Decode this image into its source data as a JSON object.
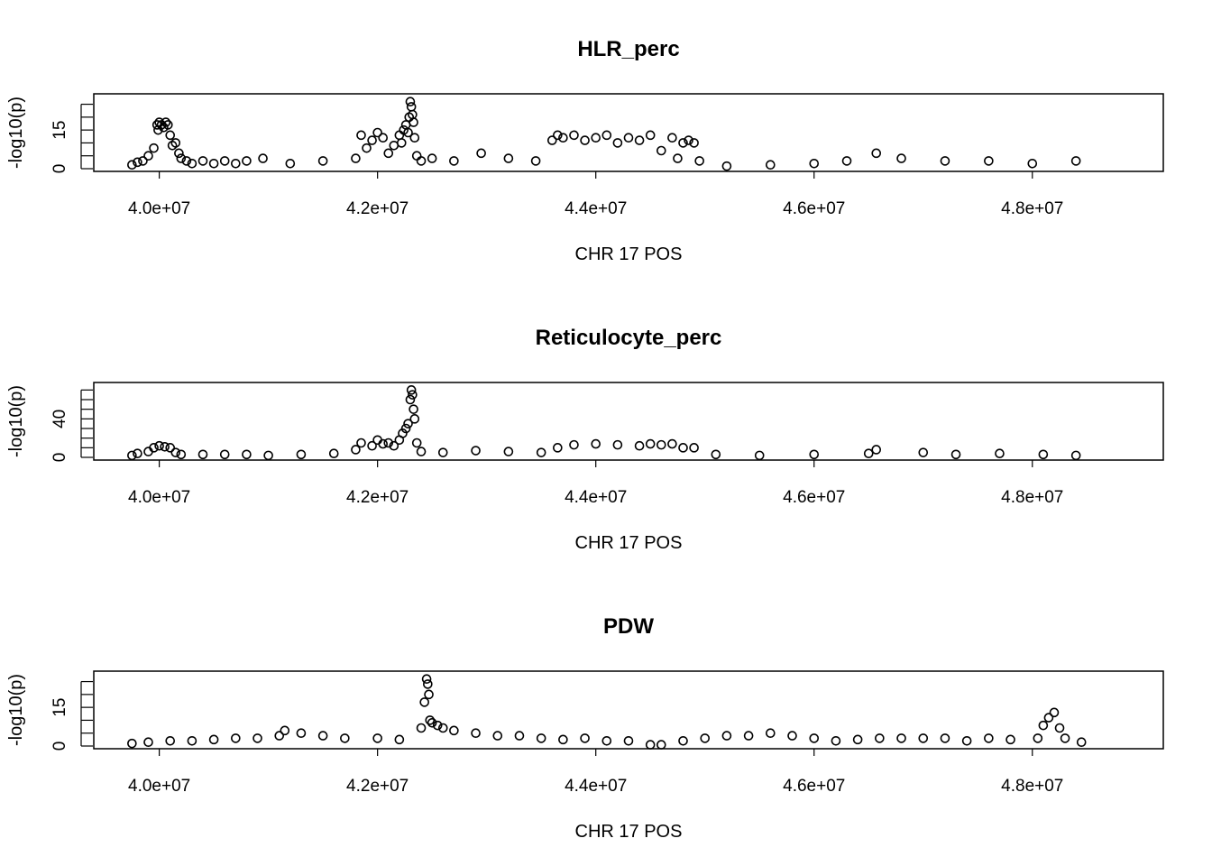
{
  "chart_data": [
    {
      "type": "scatter",
      "title": "HLR_perc",
      "xlabel": "CHR 17 POS",
      "ylabel": "-log10(p)",
      "xlim": [
        39400000,
        49200000
      ],
      "ylim": [
        0,
        28
      ],
      "x_ticks": [
        40000000,
        42000000,
        44000000,
        46000000,
        48000000
      ],
      "x_tick_labels": [
        "4.0e+07",
        "4.2e+07",
        "4.4e+07",
        "4.6e+07",
        "4.8e+07"
      ],
      "y_ticks": [
        0,
        5,
        10,
        15,
        20,
        25
      ],
      "y_tick_labels": [
        "0",
        "",
        "",
        "15",
        "",
        ""
      ],
      "grid": false,
      "marker": "open-circle",
      "series": [
        {
          "x": [
            39750000,
            39800000,
            39850000,
            39900000,
            39950000,
            39980000,
            39990000,
            40000000,
            40020000,
            40040000,
            40060000,
            40080000,
            40100000,
            40120000,
            40150000,
            40180000,
            40200000,
            40250000,
            40300000,
            40400000,
            40500000,
            40600000,
            40700000,
            40800000,
            40950000,
            41200000,
            41500000,
            41800000,
            41850000,
            41900000,
            41950000,
            42000000,
            42050000,
            42100000,
            42150000,
            42200000,
            42220000,
            42240000,
            42260000,
            42280000,
            42290000,
            42300000,
            42310000,
            42320000,
            42330000,
            42340000,
            42360000,
            42400000,
            42500000,
            42700000,
            42950000,
            43200000,
            43450000,
            43600000,
            43650000,
            43700000,
            43800000,
            43900000,
            44000000,
            44100000,
            44200000,
            44300000,
            44400000,
            44500000,
            44600000,
            44700000,
            44750000,
            44800000,
            44850000,
            44900000,
            44950000,
            45200000,
            45600000,
            46000000,
            46300000,
            46570000,
            46800000,
            47200000,
            47600000,
            48000000,
            48400000
          ],
          "y": [
            1.5,
            2.5,
            3,
            5,
            8,
            17,
            15,
            18,
            17,
            16,
            18,
            17,
            13,
            9,
            10,
            6,
            4,
            3,
            2,
            3,
            2,
            3,
            2,
            3,
            4,
            2,
            3,
            4,
            13,
            8,
            11,
            14,
            12,
            6,
            9,
            13,
            10,
            15,
            17,
            14,
            20,
            26,
            24,
            21,
            18,
            12,
            5,
            3,
            4,
            3,
            6,
            4,
            3,
            11,
            13,
            12,
            13,
            11,
            12,
            13,
            10,
            12,
            11,
            13,
            7,
            12,
            4,
            10,
            11,
            10,
            3,
            1,
            1.5,
            2,
            3,
            6,
            4,
            3,
            3,
            2,
            3
          ]
        }
      ]
    },
    {
      "type": "scatter",
      "title": "Reticulocyte_perc",
      "xlabel": "CHR 17 POS",
      "ylabel": "-log10(p)",
      "xlim": [
        39400000,
        49200000
      ],
      "ylim": [
        0,
        75
      ],
      "x_ticks": [
        40000000,
        42000000,
        44000000,
        46000000,
        48000000
      ],
      "x_tick_labels": [
        "4.0e+07",
        "4.2e+07",
        "4.4e+07",
        "4.6e+07",
        "4.8e+07"
      ],
      "y_ticks": [
        0,
        10,
        20,
        30,
        40,
        50,
        60,
        70
      ],
      "y_tick_labels": [
        "0",
        "",
        "",
        "",
        "40",
        "",
        "",
        ""
      ],
      "grid": false,
      "marker": "open-circle",
      "series": [
        {
          "x": [
            39750000,
            39800000,
            39900000,
            39950000,
            40000000,
            40050000,
            40100000,
            40150000,
            40200000,
            40400000,
            40600000,
            40800000,
            41000000,
            41300000,
            41600000,
            41800000,
            41850000,
            41950000,
            42000000,
            42050000,
            42100000,
            42150000,
            42200000,
            42230000,
            42260000,
            42280000,
            42300000,
            42310000,
            42320000,
            42330000,
            42340000,
            42360000,
            42400000,
            42600000,
            42900000,
            43200000,
            43500000,
            43650000,
            43800000,
            44000000,
            44200000,
            44400000,
            44500000,
            44600000,
            44700000,
            44800000,
            44900000,
            45100000,
            45500000,
            46000000,
            46500000,
            46570000,
            47000000,
            47300000,
            47700000,
            48100000,
            48400000
          ],
          "y": [
            2,
            4,
            6,
            10,
            12,
            11,
            10,
            5,
            3,
            3,
            3,
            3,
            2,
            3,
            4,
            8,
            15,
            12,
            18,
            14,
            15,
            12,
            18,
            25,
            30,
            35,
            60,
            70,
            65,
            50,
            40,
            15,
            6,
            5,
            7,
            6,
            5,
            10,
            13,
            14,
            13,
            12,
            14,
            13,
            14,
            10,
            10,
            3,
            2,
            3,
            4,
            8,
            5,
            3,
            4,
            3,
            2
          ]
        }
      ]
    },
    {
      "type": "scatter",
      "title": "PDW",
      "xlabel": "CHR 17 POS",
      "ylabel": "-log10(p)",
      "xlim": [
        39400000,
        49200000
      ],
      "ylim": [
        0,
        28
      ],
      "x_ticks": [
        40000000,
        42000000,
        44000000,
        46000000,
        48000000
      ],
      "x_tick_labels": [
        "4.0e+07",
        "4.2e+07",
        "4.4e+07",
        "4.6e+07",
        "4.8e+07"
      ],
      "y_ticks": [
        0,
        5,
        10,
        15,
        20,
        25
      ],
      "y_tick_labels": [
        "0",
        "",
        "",
        "15",
        "",
        ""
      ],
      "grid": false,
      "marker": "open-circle",
      "series": [
        {
          "x": [
            39750000,
            39900000,
            40100000,
            40300000,
            40500000,
            40700000,
            40900000,
            41100000,
            41150000,
            41300000,
            41500000,
            41700000,
            42000000,
            42200000,
            42400000,
            42430000,
            42450000,
            42460000,
            42470000,
            42480000,
            42500000,
            42550000,
            42600000,
            42700000,
            42900000,
            43100000,
            43300000,
            43500000,
            43700000,
            43900000,
            44100000,
            44300000,
            44500000,
            44600000,
            44800000,
            45000000,
            45200000,
            45400000,
            45600000,
            45800000,
            46000000,
            46200000,
            46400000,
            46600000,
            46800000,
            47000000,
            47200000,
            47400000,
            47600000,
            47800000,
            48050000,
            48100000,
            48150000,
            48200000,
            48250000,
            48300000,
            48450000
          ],
          "y": [
            1,
            1.5,
            2,
            2,
            2.5,
            3,
            3,
            4,
            6,
            5,
            4,
            3,
            3,
            2.5,
            7,
            17,
            26,
            24,
            20,
            10,
            9,
            8,
            7,
            6,
            5,
            4,
            4,
            3,
            2.5,
            3,
            2,
            2,
            0.5,
            0.5,
            2,
            3,
            4,
            4,
            5,
            4,
            3,
            2,
            2.5,
            3,
            3,
            3,
            3,
            2,
            3,
            2.5,
            3,
            8,
            11,
            13,
            7,
            3,
            1.5
          ]
        }
      ]
    }
  ]
}
